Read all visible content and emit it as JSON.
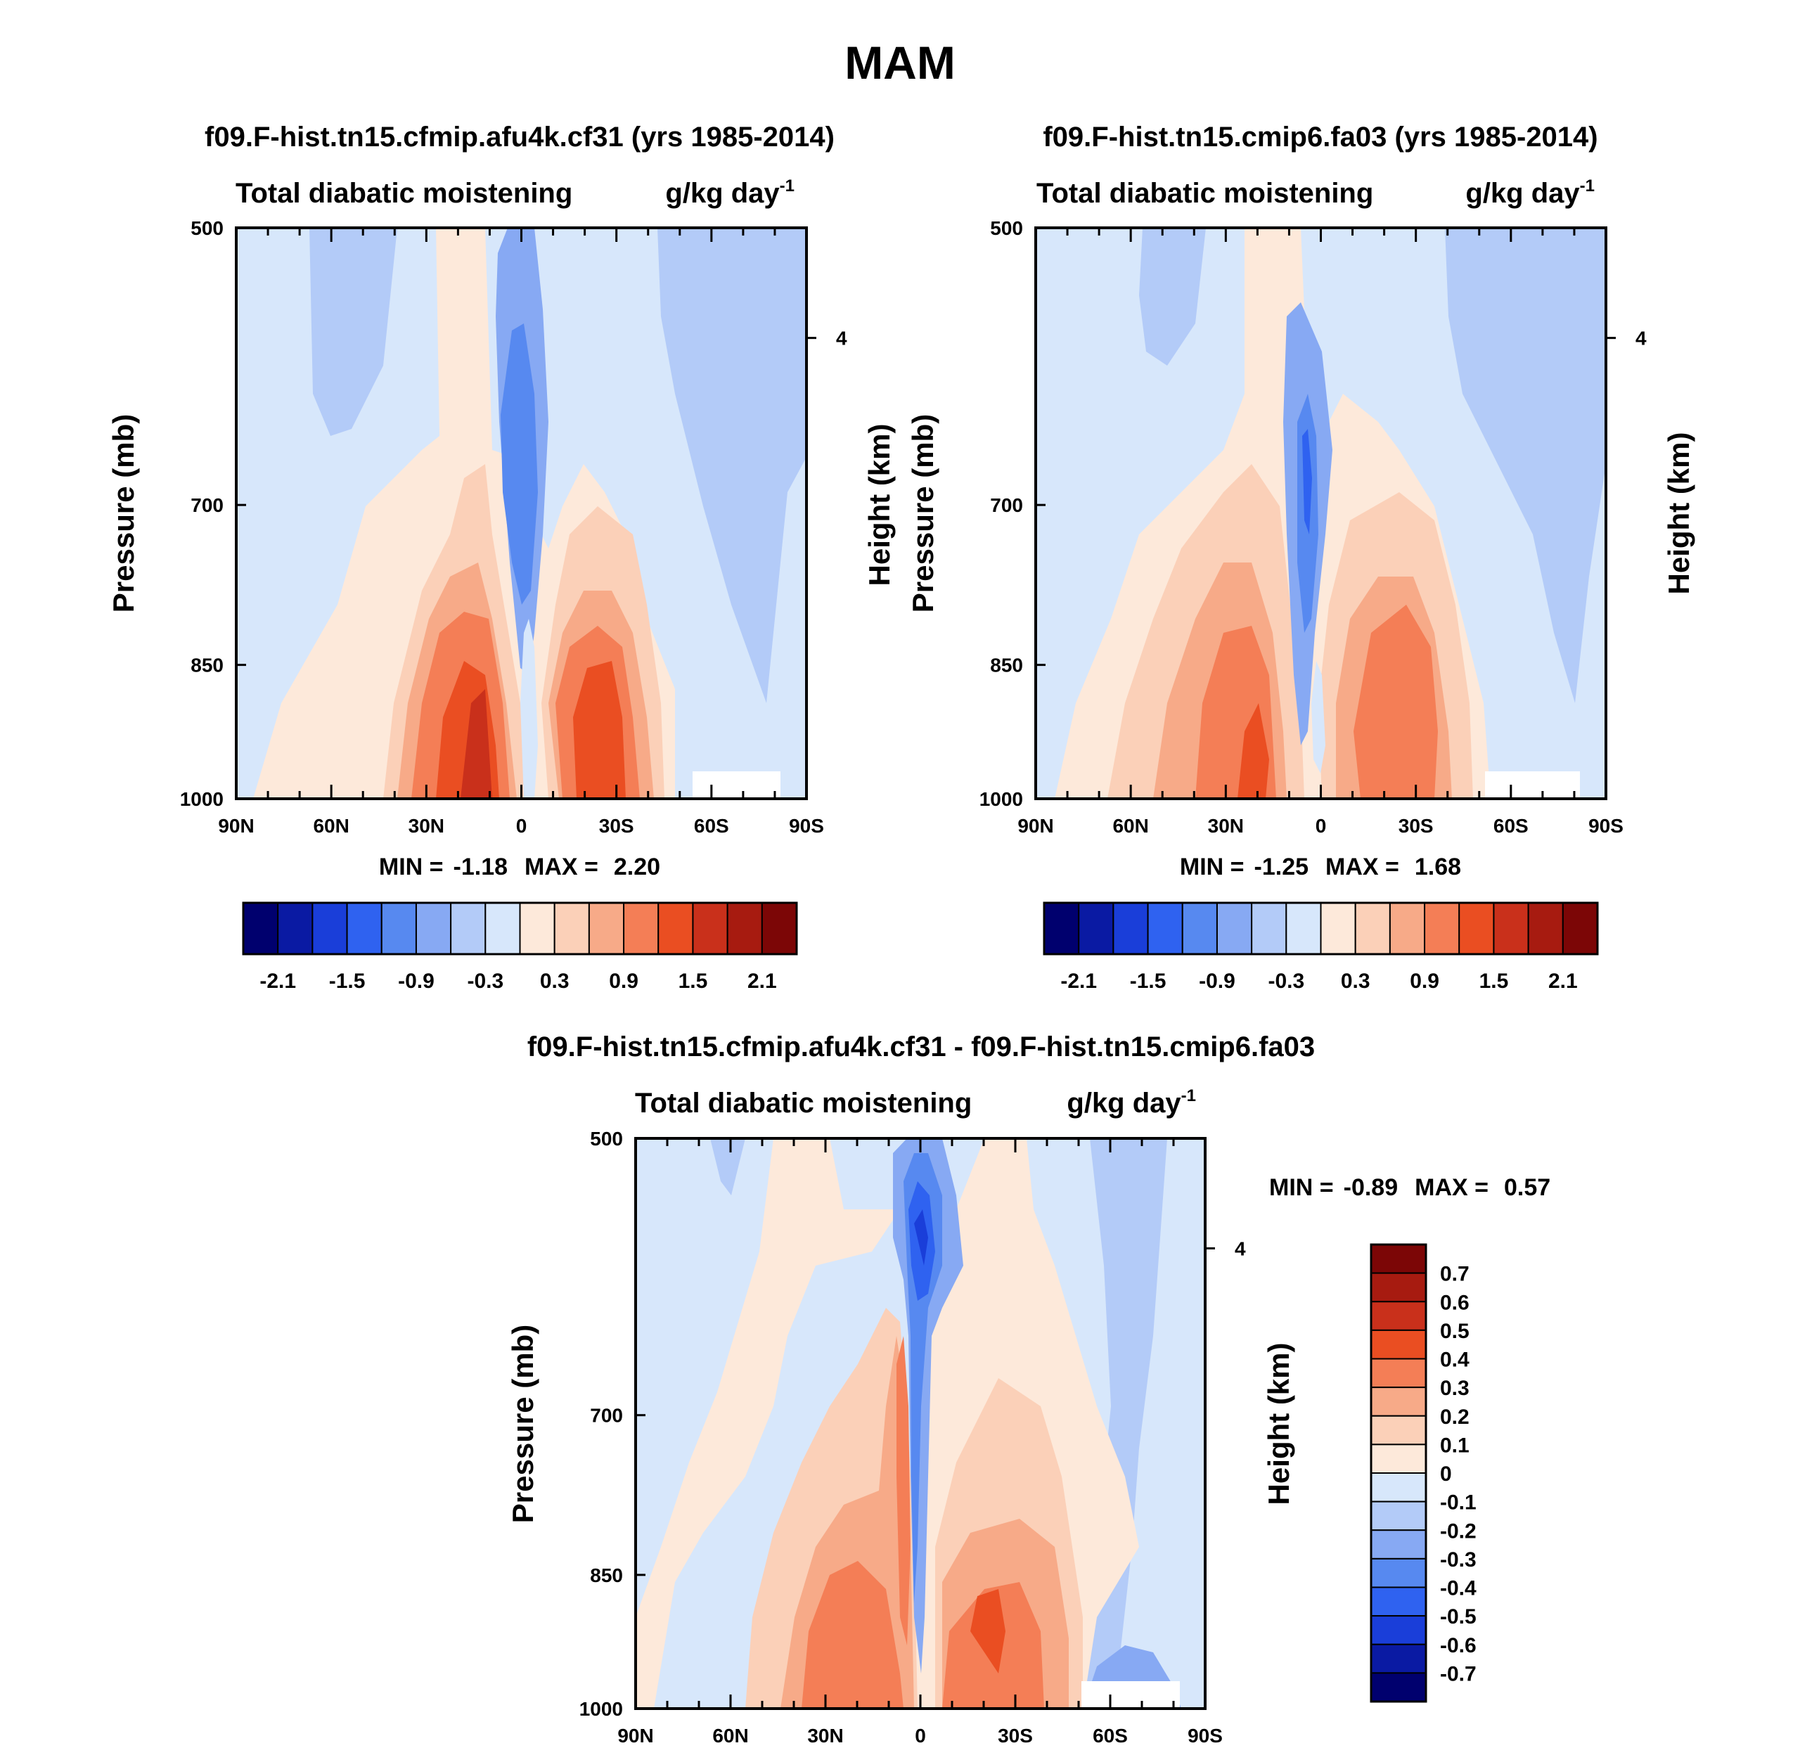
{
  "figure": {
    "title": "MAM"
  },
  "chart_data": [
    {
      "type": "contour",
      "id": "top-left",
      "title": "f09.F-hist.tn15.cfmip.afu4k.cf31 (yrs 1985-2014)",
      "variable": "Total diabatic moistening",
      "units_main": "g/kg day",
      "units_sup": "-1",
      "ylabel": "Pressure (mb)",
      "ylabel_right": "Height (km)",
      "y_ticks": [
        "500",
        "700",
        "850",
        "1000"
      ],
      "y_right_ticks": [
        "4"
      ],
      "x_ticks": [
        "90N",
        "60N",
        "30N",
        "0",
        "30S",
        "60S",
        "90S"
      ],
      "min_label": "MIN =",
      "min_value": "-1.18",
      "max_label": "MAX =",
      "max_value": "2.20",
      "colorbar_orientation": "horizontal",
      "colorbar_labels": [
        "-2.1",
        "-1.5",
        "-0.9",
        "-0.3",
        "0.3",
        "0.9",
        "1.5",
        "2.1"
      ]
    },
    {
      "type": "contour",
      "id": "top-right",
      "title": "f09.F-hist.tn15.cmip6.fa03 (yrs 1985-2014)",
      "variable": "Total diabatic moistening",
      "units_main": "g/kg day",
      "units_sup": "-1",
      "ylabel": "Pressure (mb)",
      "ylabel_right": "Height (km)",
      "y_ticks": [
        "500",
        "700",
        "850",
        "1000"
      ],
      "y_right_ticks": [
        "4"
      ],
      "x_ticks": [
        "90N",
        "60N",
        "30N",
        "0",
        "30S",
        "60S",
        "90S"
      ],
      "min_label": "MIN =",
      "min_value": "-1.25",
      "max_label": "MAX =",
      "max_value": "1.68",
      "colorbar_orientation": "horizontal",
      "colorbar_labels": [
        "-2.1",
        "-1.5",
        "-0.9",
        "-0.3",
        "0.3",
        "0.9",
        "1.5",
        "2.1"
      ]
    },
    {
      "type": "contour",
      "id": "bottom-diff",
      "title": "f09.F-hist.tn15.cfmip.afu4k.cf31 - f09.F-hist.tn15.cmip6.fa03",
      "variable": "Total diabatic moistening",
      "units_main": "g/kg day",
      "units_sup": "-1",
      "ylabel": "Pressure (mb)",
      "ylabel_right": "Height (km)",
      "y_ticks": [
        "500",
        "700",
        "850",
        "1000"
      ],
      "y_right_ticks": [
        "4"
      ],
      "x_ticks": [
        "90N",
        "60N",
        "30N",
        "0",
        "30S",
        "60S",
        "90S"
      ],
      "min_label": "MIN =",
      "min_value": "-0.89",
      "max_label": "MAX =",
      "max_value": "0.57",
      "colorbar_orientation": "vertical",
      "colorbar_labels": [
        "0.7",
        "0.6",
        "0.5",
        "0.4",
        "0.3",
        "0.2",
        "0.1",
        "0",
        "-0.1",
        "-0.2",
        "-0.3",
        "-0.4",
        "-0.5",
        "-0.6",
        "-0.7"
      ]
    }
  ],
  "colormap": [
    "#00006e",
    "#0a1aa3",
    "#1a3ed9",
    "#2f62f0",
    "#5789f0",
    "#87a9f3",
    "#b3cbf8",
    "#d7e7fb",
    "#fde9da",
    "#fbd0b8",
    "#f7aa88",
    "#f47e56",
    "#ea4e22",
    "#c9301b",
    "#a71b10",
    "#7c0606"
  ]
}
